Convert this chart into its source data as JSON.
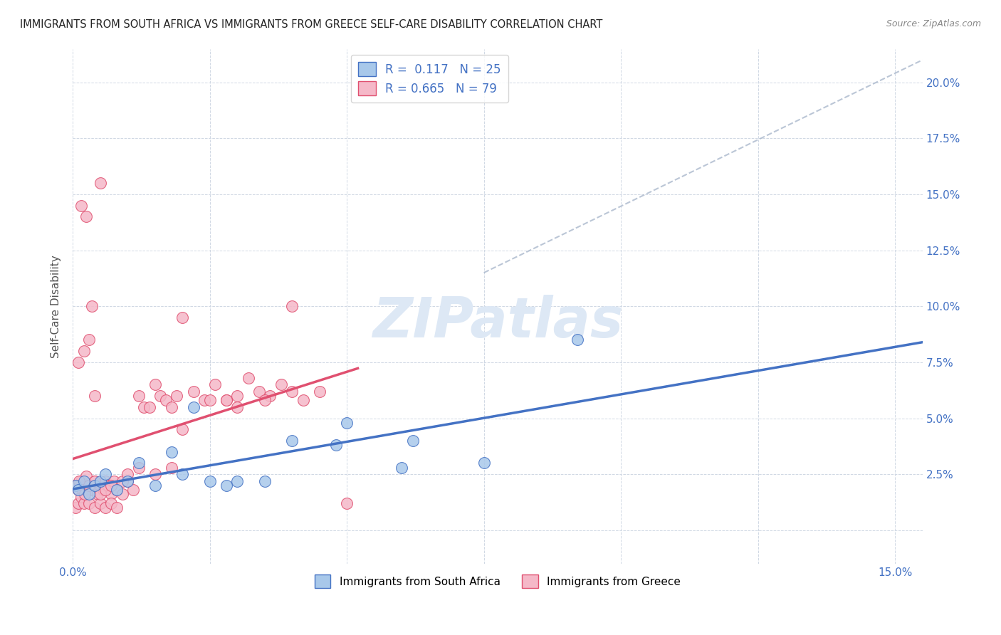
{
  "title": "IMMIGRANTS FROM SOUTH AFRICA VS IMMIGRANTS FROM GREECE SELF-CARE DISABILITY CORRELATION CHART",
  "source": "Source: ZipAtlas.com",
  "ylabel": "Self-Care Disability",
  "xlim": [
    0.0,
    0.155
  ],
  "ylim": [
    -0.015,
    0.215
  ],
  "R_blue": 0.117,
  "N_blue": 25,
  "R_pink": 0.665,
  "N_pink": 79,
  "blue_color": "#a8c8ea",
  "pink_color": "#f5b8c8",
  "blue_line_color": "#4472c4",
  "pink_line_color": "#e05070",
  "watermark_color": "#dde8f5",
  "sa_x": [
    0.0005,
    0.001,
    0.002,
    0.003,
    0.004,
    0.005,
    0.006,
    0.008,
    0.01,
    0.012,
    0.015,
    0.018,
    0.02,
    0.022,
    0.025,
    0.028,
    0.03,
    0.035,
    0.04,
    0.048,
    0.05,
    0.06,
    0.062,
    0.075,
    0.092
  ],
  "sa_y": [
    0.02,
    0.018,
    0.022,
    0.016,
    0.02,
    0.022,
    0.025,
    0.018,
    0.022,
    0.03,
    0.02,
    0.035,
    0.025,
    0.055,
    0.022,
    0.02,
    0.022,
    0.022,
    0.04,
    0.038,
    0.048,
    0.028,
    0.04,
    0.03,
    0.085
  ],
  "greece_x": [
    0.0005,
    0.001,
    0.0015,
    0.002,
    0.0025,
    0.003,
    0.0035,
    0.004,
    0.0045,
    0.005,
    0.0055,
    0.006,
    0.0065,
    0.007,
    0.0075,
    0.008,
    0.009,
    0.01,
    0.011,
    0.012,
    0.013,
    0.014,
    0.015,
    0.016,
    0.017,
    0.018,
    0.019,
    0.02,
    0.022,
    0.024,
    0.026,
    0.028,
    0.03,
    0.032,
    0.034,
    0.036,
    0.038,
    0.04,
    0.042,
    0.045,
    0.0005,
    0.001,
    0.0015,
    0.002,
    0.003,
    0.004,
    0.005,
    0.006,
    0.007,
    0.008,
    0.0008,
    0.0012,
    0.0018,
    0.0022,
    0.003,
    0.004,
    0.005,
    0.006,
    0.007,
    0.009,
    0.01,
    0.012,
    0.015,
    0.018,
    0.02,
    0.025,
    0.028,
    0.03,
    0.035,
    0.04,
    0.001,
    0.002,
    0.003,
    0.004,
    0.005,
    0.0015,
    0.0025,
    0.0035,
    0.05
  ],
  "greece_y": [
    0.02,
    0.018,
    0.022,
    0.016,
    0.024,
    0.02,
    0.018,
    0.022,
    0.016,
    0.02,
    0.018,
    0.022,
    0.02,
    0.016,
    0.022,
    0.018,
    0.016,
    0.022,
    0.018,
    0.06,
    0.055,
    0.055,
    0.065,
    0.06,
    0.058,
    0.055,
    0.06,
    0.095,
    0.062,
    0.058,
    0.065,
    0.058,
    0.06,
    0.068,
    0.062,
    0.06,
    0.065,
    0.062,
    0.058,
    0.062,
    0.01,
    0.012,
    0.015,
    0.012,
    0.012,
    0.01,
    0.012,
    0.01,
    0.012,
    0.01,
    0.02,
    0.022,
    0.018,
    0.016,
    0.02,
    0.022,
    0.016,
    0.018,
    0.02,
    0.022,
    0.025,
    0.028,
    0.025,
    0.028,
    0.045,
    0.058,
    0.058,
    0.055,
    0.058,
    0.1,
    0.075,
    0.08,
    0.085,
    0.06,
    0.155,
    0.145,
    0.14,
    0.1,
    0.012
  ],
  "xtick_vals": [
    0.0,
    0.025,
    0.05,
    0.075,
    0.1,
    0.125,
    0.15
  ],
  "ytick_vals": [
    0.0,
    0.025,
    0.05,
    0.075,
    0.1,
    0.125,
    0.15,
    0.175,
    0.2
  ],
  "right_ytick_labels": [
    "",
    "2.5%",
    "5.0%",
    "7.5%",
    "10.0%",
    "12.5%",
    "15.0%",
    "17.5%",
    "20.0%"
  ]
}
